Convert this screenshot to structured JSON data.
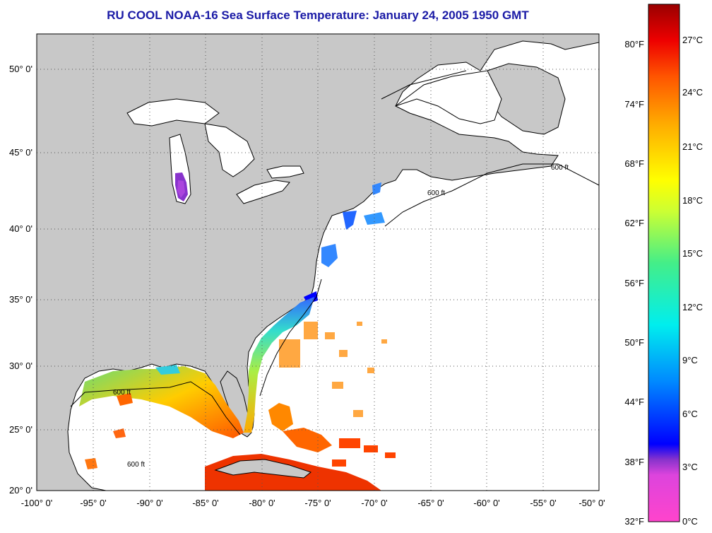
{
  "title": "RU COOL  NOAA-16  Sea Surface Temperature:  January 24, 2005 1950 GMT",
  "lat_labels": [
    "50° 0'",
    "45° 0'",
    "40° 0'",
    "35° 0'",
    "30° 0'",
    "25° 0'",
    "20° 0'"
  ],
  "lon_labels": [
    "-100° 0'",
    "-95° 0'",
    "-90° 0'",
    "-85° 0'",
    "-80° 0'",
    "-75° 0'",
    "-70° 0'",
    "-65° 0'",
    "-60° 0'",
    "-55° 0'",
    "-50° 0'"
  ],
  "isobath_label": "600 ft",
  "colorbar": {
    "fahrenheit": [
      "80°F",
      "74°F",
      "68°F",
      "62°F",
      "56°F",
      "50°F",
      "44°F",
      "38°F",
      "32°F"
    ],
    "celsius": [
      "27°C",
      "24°C",
      "21°C",
      "18°C",
      "15°C",
      "12°C",
      "9°C",
      "6°C",
      "3°C",
      "0°C"
    ],
    "colors": [
      "#ff44cc",
      "#9933cc",
      "#0000ff",
      "#00aaff",
      "#00ffee",
      "#66ff66",
      "#ffff00",
      "#ffaa00",
      "#ff4400",
      "#ee0000",
      "#990000"
    ]
  },
  "land_color": "#c8c8c8",
  "ocean_color": "#ffffff"
}
